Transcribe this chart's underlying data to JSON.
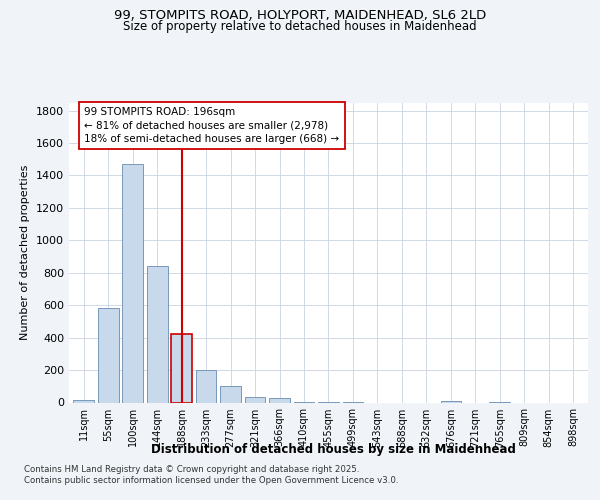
{
  "title_line1": "99, STOMPITS ROAD, HOLYPORT, MAIDENHEAD, SL6 2LD",
  "title_line2": "Size of property relative to detached houses in Maidenhead",
  "xlabel": "Distribution of detached houses by size in Maidenhead",
  "ylabel": "Number of detached properties",
  "categories": [
    "11sqm",
    "55sqm",
    "100sqm",
    "144sqm",
    "188sqm",
    "233sqm",
    "277sqm",
    "321sqm",
    "366sqm",
    "410sqm",
    "455sqm",
    "499sqm",
    "543sqm",
    "588sqm",
    "632sqm",
    "676sqm",
    "721sqm",
    "765sqm",
    "809sqm",
    "854sqm",
    "898sqm"
  ],
  "values": [
    15,
    580,
    1470,
    840,
    420,
    200,
    100,
    35,
    30,
    5,
    3,
    2,
    0,
    0,
    0,
    8,
    0,
    3,
    0,
    0,
    0
  ],
  "bar_color": "#c8d9eb",
  "bar_edge_color": "#7799bb",
  "highlight_bar_index": 4,
  "highlight_bar_edge_color": "#cc0000",
  "vline_x": 4,
  "vline_color": "#cc0000",
  "annotation_text": "99 STOMPITS ROAD: 196sqm\n← 81% of detached houses are smaller (2,978)\n18% of semi-detached houses are larger (668) →",
  "annotation_box_color": "#ffffff",
  "annotation_box_edge": "#cc0000",
  "ylim": [
    0,
    1850
  ],
  "yticks": [
    0,
    200,
    400,
    600,
    800,
    1000,
    1200,
    1400,
    1600,
    1800
  ],
  "footer_line1": "Contains HM Land Registry data © Crown copyright and database right 2025.",
  "footer_line2": "Contains public sector information licensed under the Open Government Licence v3.0.",
  "bg_color": "#f0f4f8",
  "grid_color": "#c8d4e0"
}
